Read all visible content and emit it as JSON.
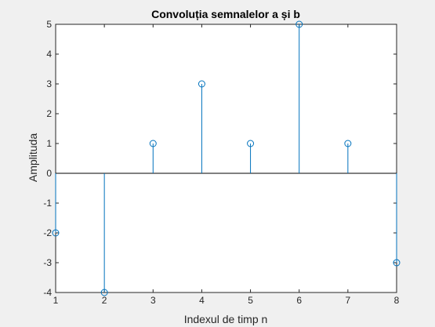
{
  "chart_data": {
    "type": "stem",
    "title": "Convoluția semnalelor a și b",
    "xlabel": "Indexul de timp n",
    "ylabel": "Amplituda",
    "xlim": [
      1,
      8
    ],
    "ylim": [
      -4,
      5
    ],
    "xticks": [
      1,
      2,
      3,
      4,
      5,
      6,
      7,
      8
    ],
    "yticks": [
      -4,
      -3,
      -2,
      -1,
      0,
      1,
      2,
      3,
      4,
      5
    ],
    "x": [
      1,
      2,
      3,
      4,
      5,
      6,
      7,
      8
    ],
    "y": [
      -2,
      -4,
      1,
      3,
      1,
      5,
      1,
      -3
    ],
    "baseline": 0,
    "grid": false,
    "colors": {
      "figure_background": "#f0f0f0",
      "axes_background": "#ffffff",
      "stem": "#0072bd",
      "baseline": "#000000",
      "axes": "#262626"
    }
  }
}
